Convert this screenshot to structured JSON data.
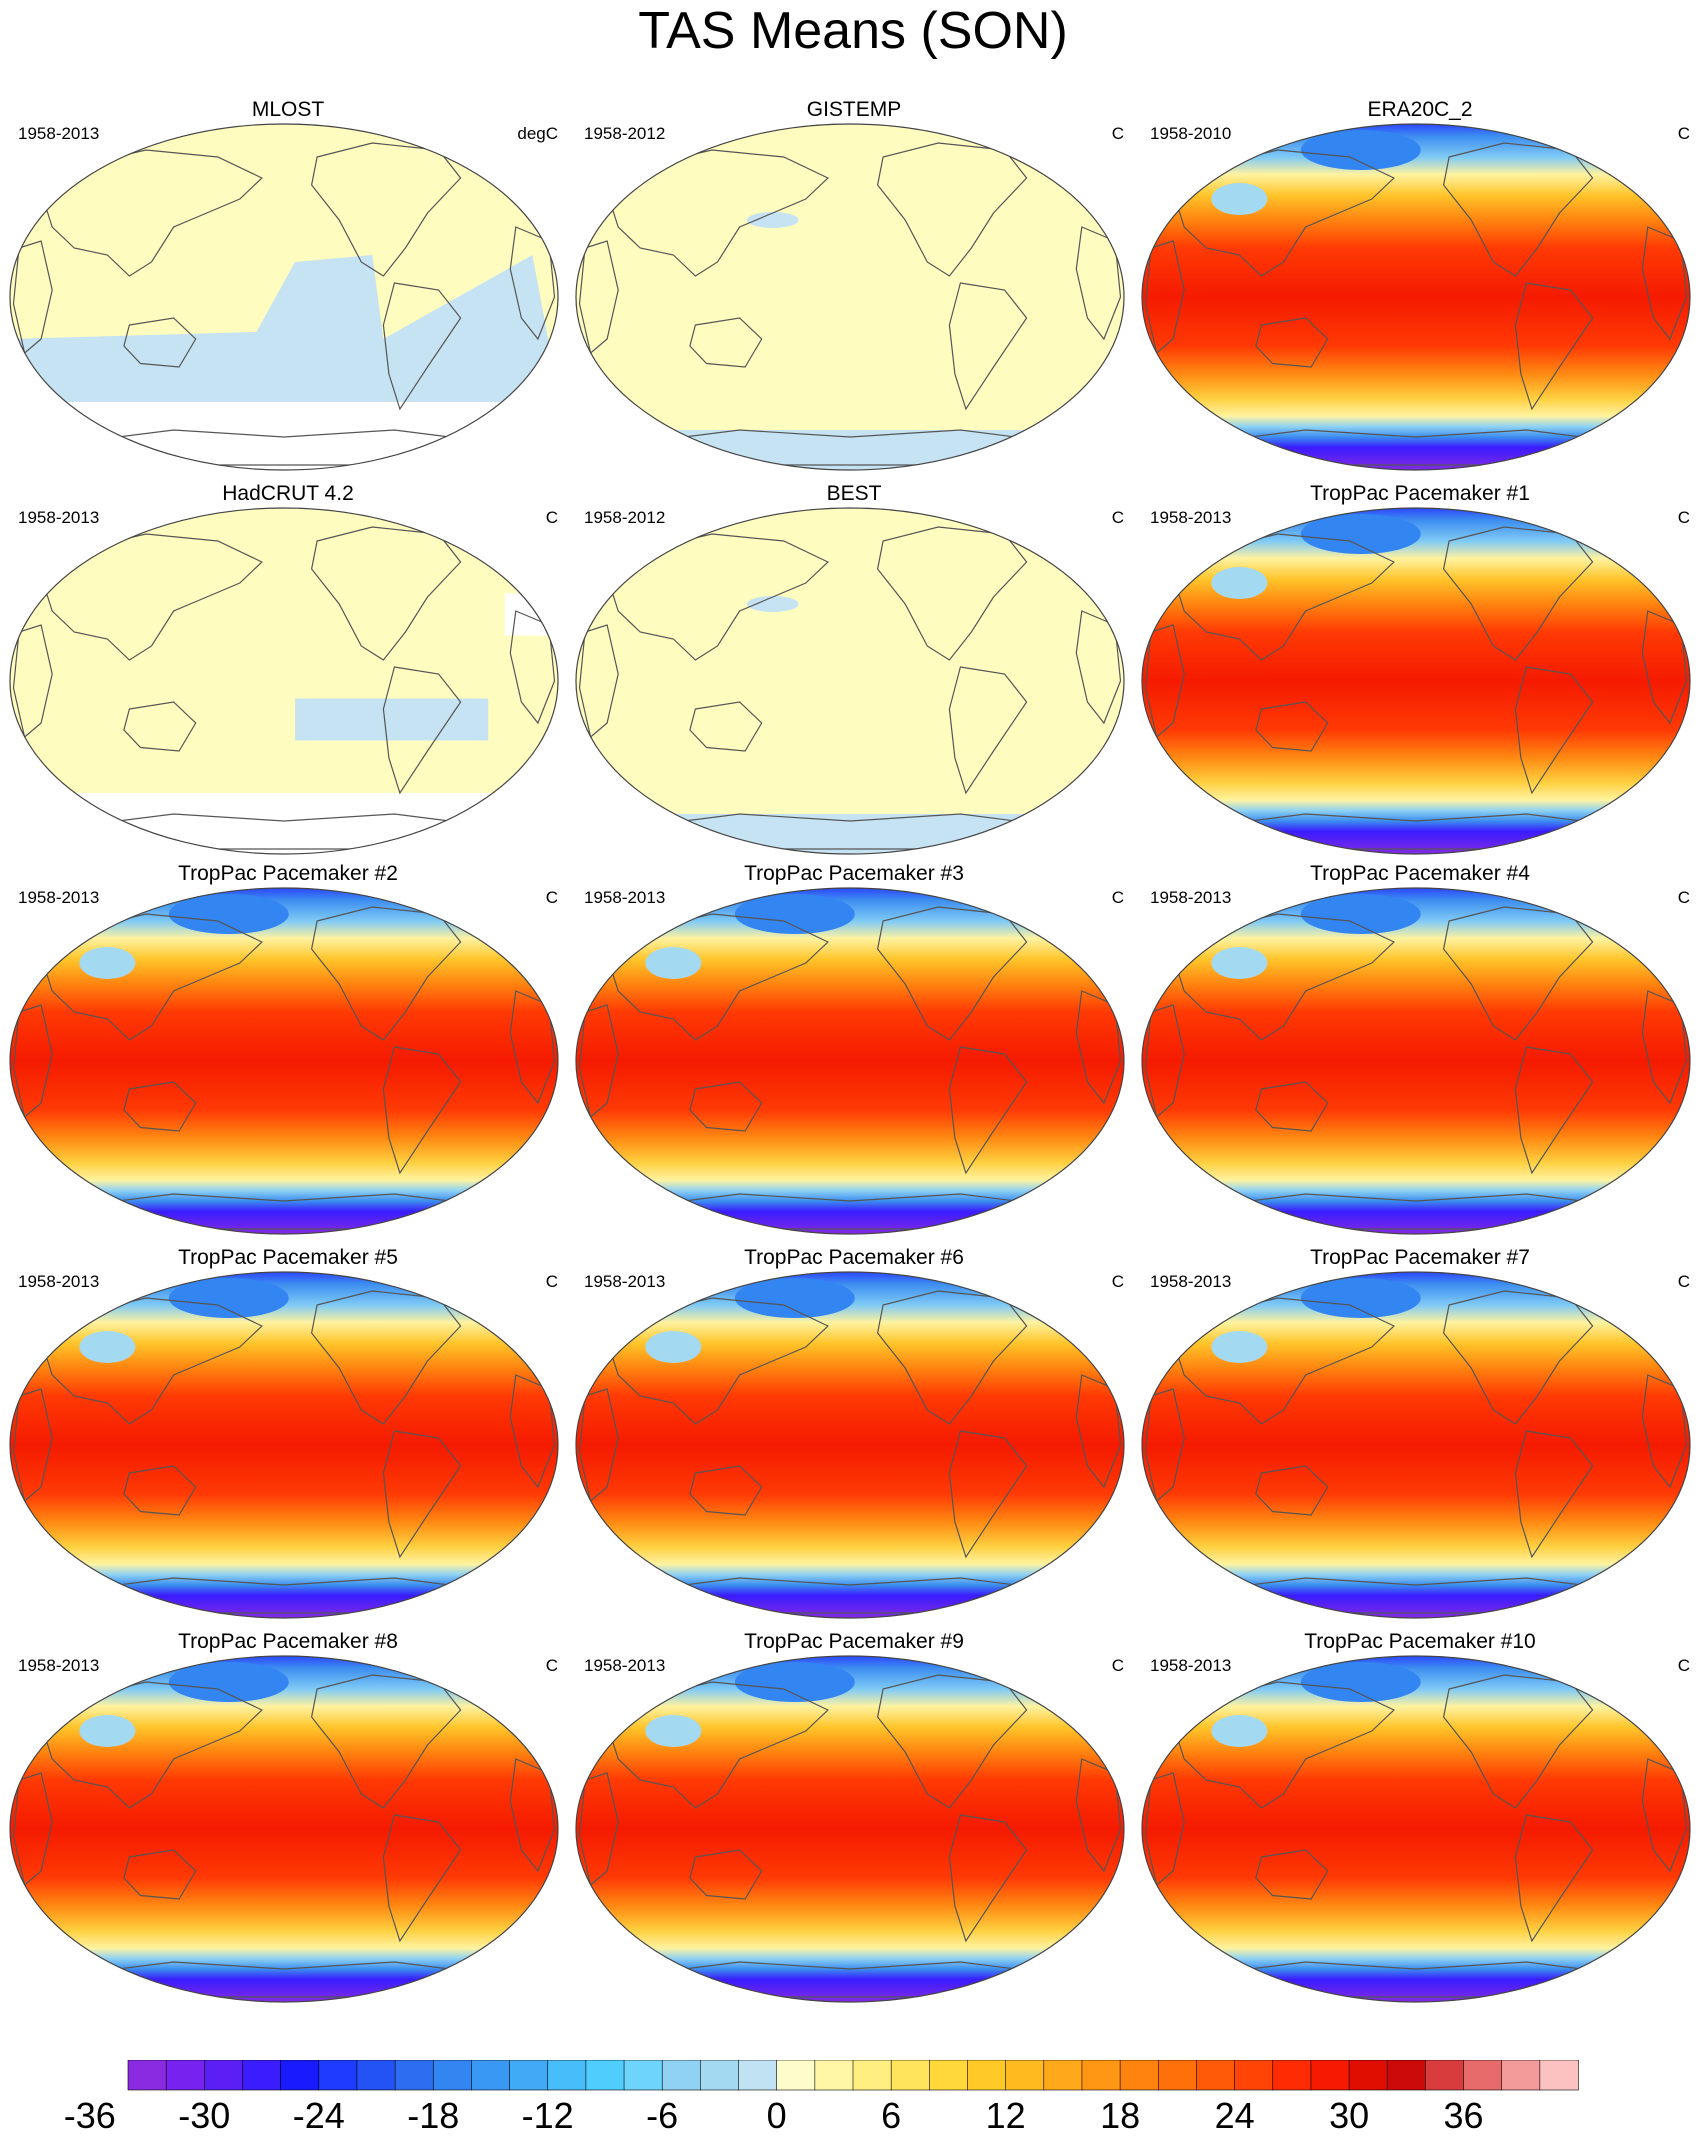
{
  "title": "TAS Means (SON)",
  "panels": [
    {
      "title": "MLOST",
      "period": "1958-2013",
      "unit": "degC",
      "style": "obs-blue"
    },
    {
      "title": "GISTEMP",
      "period": "1958-2012",
      "unit": "C",
      "style": "obs-yellow"
    },
    {
      "title": "ERA20C_2",
      "period": "1958-2010",
      "unit": "C",
      "style": "model"
    },
    {
      "title": "HadCRUT 4.2",
      "period": "1958-2013",
      "unit": "C",
      "style": "obs-gaps"
    },
    {
      "title": "BEST",
      "period": "1958-2012",
      "unit": "C",
      "style": "obs-yellow"
    },
    {
      "title": "TropPac Pacemaker #1",
      "period": "1958-2013",
      "unit": "C",
      "style": "model"
    },
    {
      "title": "TropPac Pacemaker #2",
      "period": "1958-2013",
      "unit": "C",
      "style": "model"
    },
    {
      "title": "TropPac Pacemaker #3",
      "period": "1958-2013",
      "unit": "C",
      "style": "model"
    },
    {
      "title": "TropPac Pacemaker #4",
      "period": "1958-2013",
      "unit": "C",
      "style": "model"
    },
    {
      "title": "TropPac Pacemaker #5",
      "period": "1958-2013",
      "unit": "C",
      "style": "model"
    },
    {
      "title": "TropPac Pacemaker #6",
      "period": "1958-2013",
      "unit": "C",
      "style": "model"
    },
    {
      "title": "TropPac Pacemaker #7",
      "period": "1958-2013",
      "unit": "C",
      "style": "model"
    },
    {
      "title": "TropPac Pacemaker #8",
      "period": "1958-2013",
      "unit": "C",
      "style": "model"
    },
    {
      "title": "TropPac Pacemaker #9",
      "period": "1958-2013",
      "unit": "C",
      "style": "model"
    },
    {
      "title": "TropPac Pacemaker #10",
      "period": "1958-2013",
      "unit": "C",
      "style": "model"
    }
  ],
  "colorbar": {
    "labels": [
      "-36",
      "-30",
      "-24",
      "-18",
      "-12",
      "-6",
      "0",
      "6",
      "12",
      "18",
      "24",
      "30",
      "36"
    ],
    "colors": [
      "#8a2be2",
      "#7722ee",
      "#5b1ff5",
      "#3a1cff",
      "#1a1aff",
      "#1e3cff",
      "#2352f5",
      "#2d6ef0",
      "#3385f2",
      "#3a98f5",
      "#41aaf7",
      "#47bdfa",
      "#4fcdfd",
      "#6fd4fb",
      "#8fd2f3",
      "#a4d9f2",
      "#c0e2f3",
      "#fffccc",
      "#fff7a6",
      "#ffee80",
      "#ffe45c",
      "#ffd83a",
      "#ffca28",
      "#ffba1f",
      "#ffa81a",
      "#ff9614",
      "#ff840f",
      "#ff700b",
      "#ff5a08",
      "#ff4405",
      "#ff2b02",
      "#f51a00",
      "#e00e00",
      "#cc0a0a",
      "#d83c3c",
      "#e86b6b",
      "#f39a9a",
      "#fcc2c2"
    ]
  }
}
